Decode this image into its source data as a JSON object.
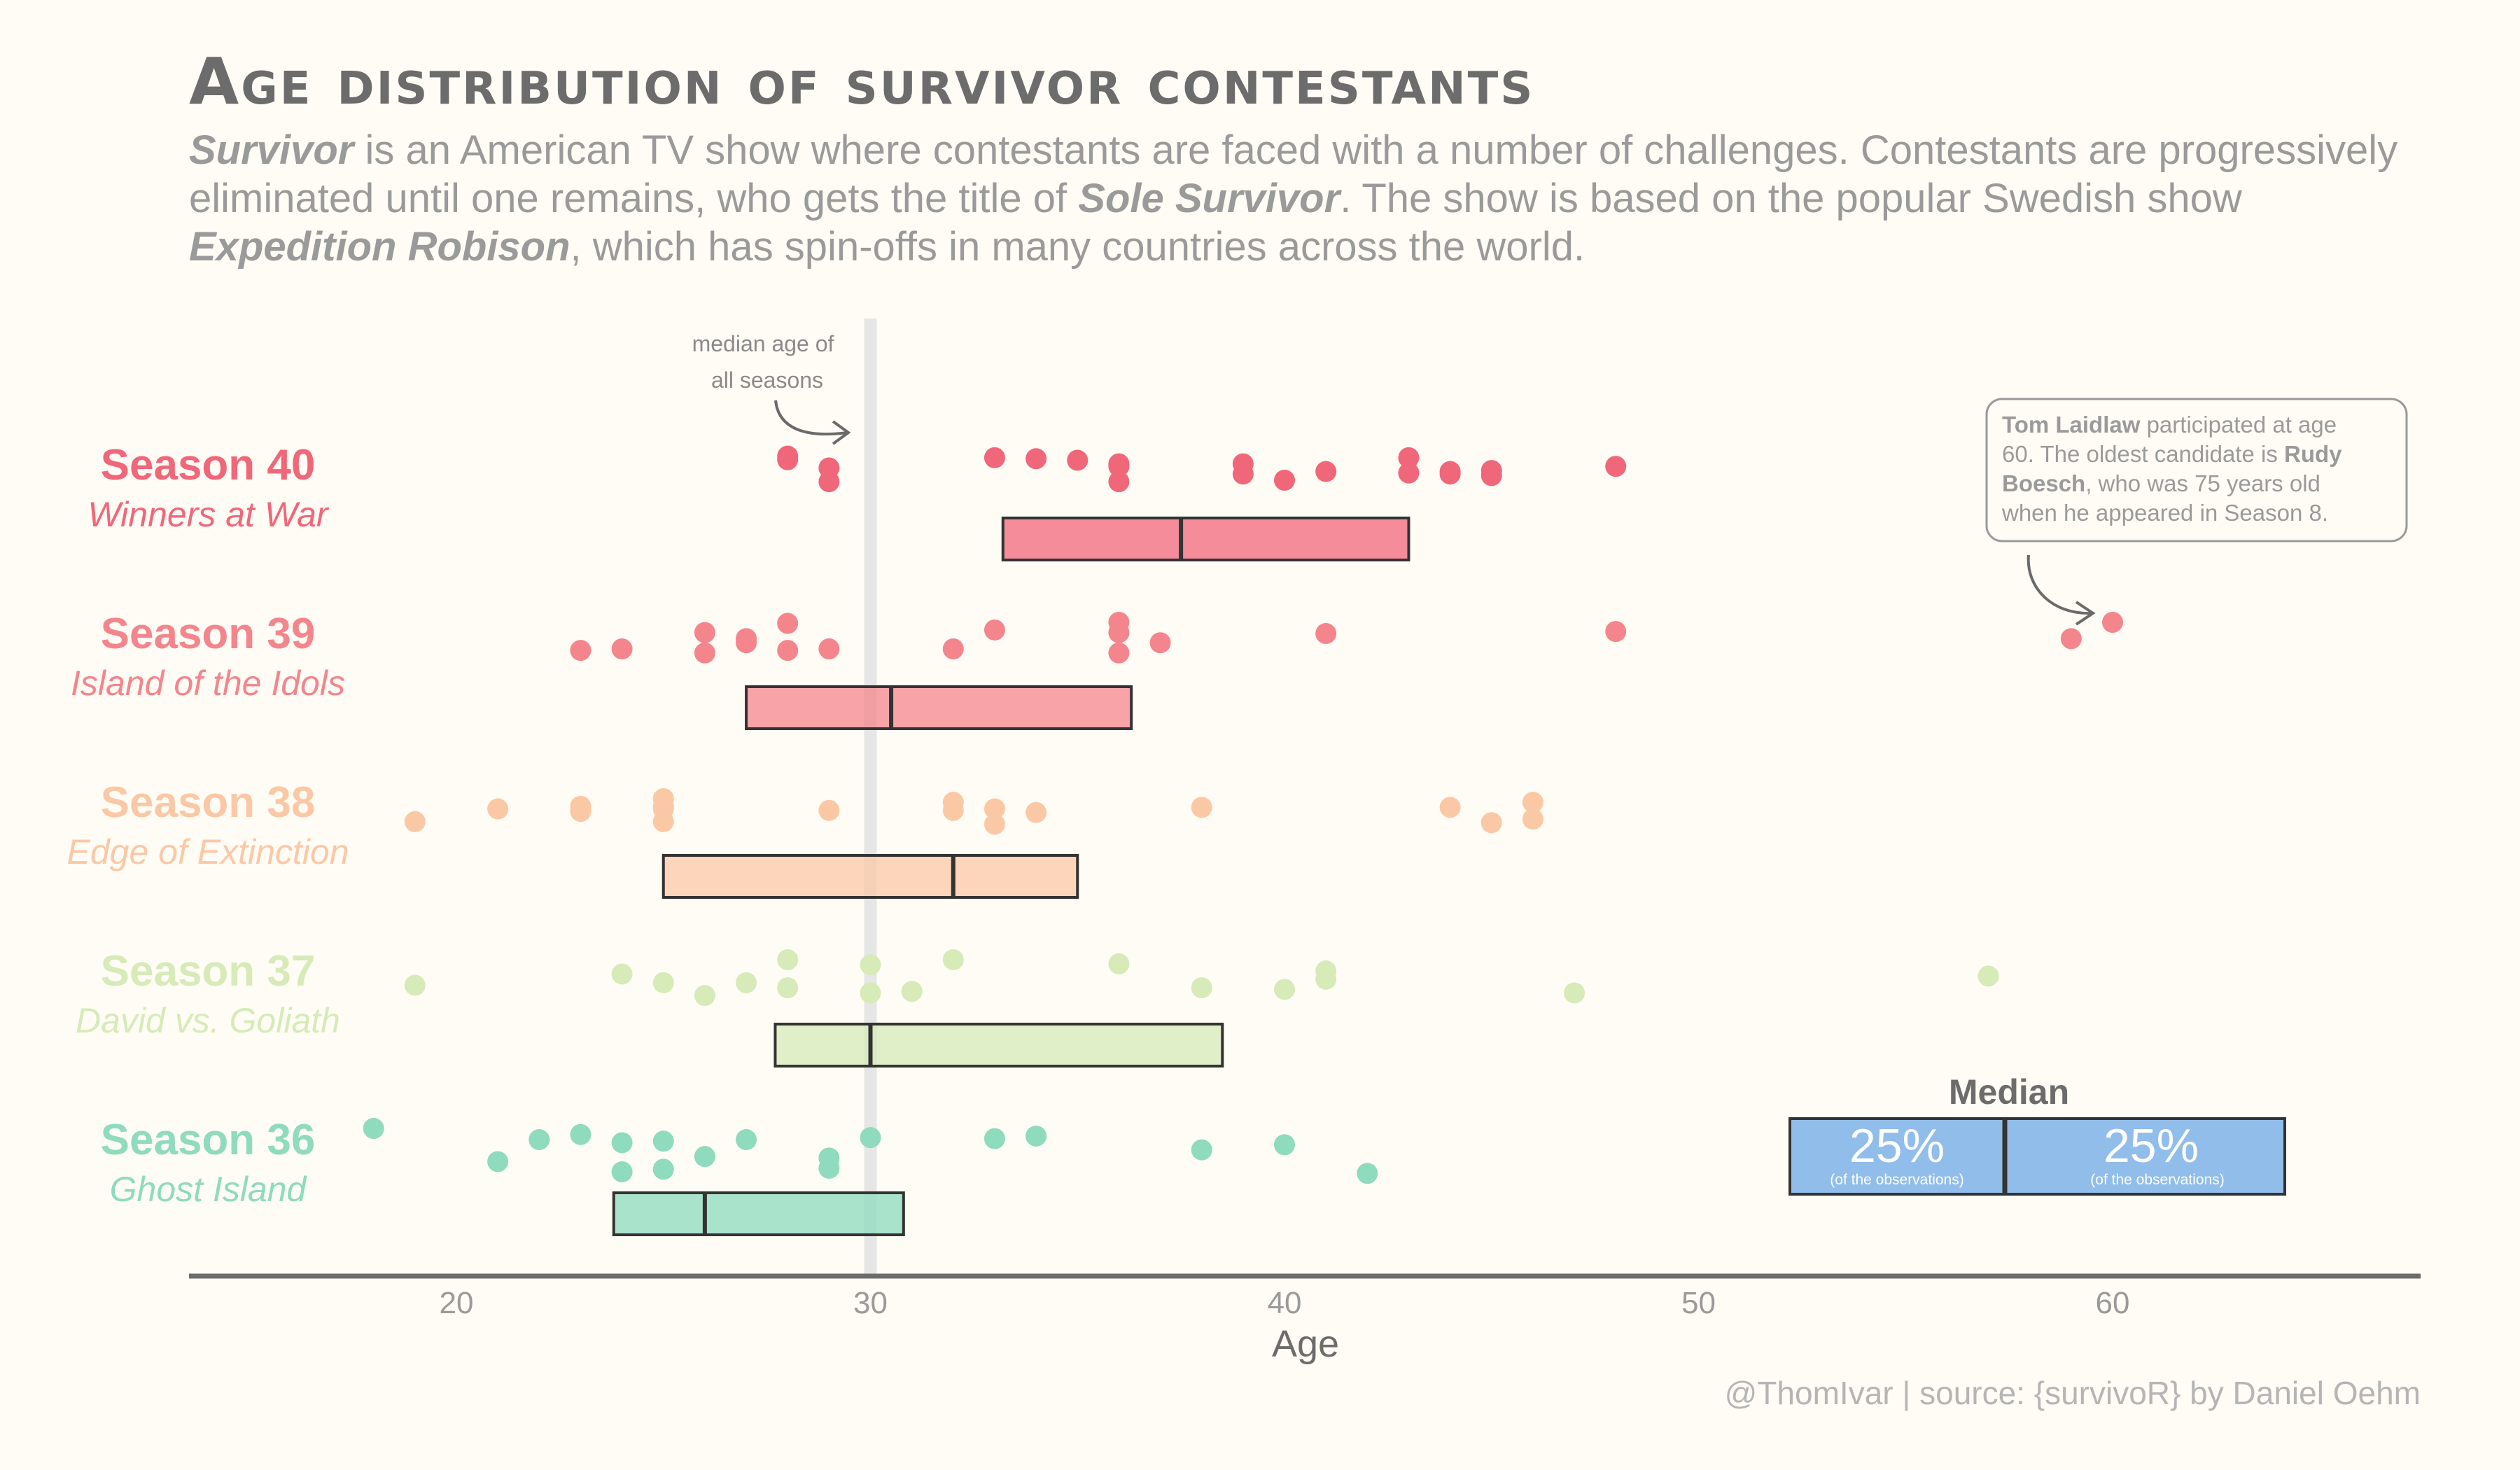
{
  "title": "Age distribution of survivor contestants",
  "subtitle": {
    "line1": [
      {
        "text": "Survivor",
        "style": "bi"
      },
      {
        "text": " is an American TV show where contestants are faced with a number of challenges. Contestants are progressively",
        "style": "n"
      }
    ],
    "line2": [
      {
        "text": "eliminated until one remains, who gets the title of ",
        "style": "n"
      },
      {
        "text": "Sole Survivor",
        "style": "bi"
      },
      {
        "text": ". The show is based on the popular Swedish show",
        "style": "n"
      }
    ],
    "line3": [
      {
        "text": "Expedition Robison",
        "style": "bi"
      },
      {
        "text": ", which has spin-offs in many countries across the world.",
        "style": "n"
      }
    ]
  },
  "median_annotation": {
    "line1": "median age of",
    "line2": "all seasons"
  },
  "callout": {
    "lines": [
      [
        {
          "text": "Tom Laidlaw",
          "style": "b"
        },
        {
          "text": " participated at age",
          "style": "n"
        }
      ],
      [
        {
          "text": "60. The oldest candidate is ",
          "style": "n"
        },
        {
          "text": "Rudy",
          "style": "b"
        }
      ],
      [
        {
          "text": "Boesch",
          "style": "b"
        },
        {
          "text": ", who was 75 years old",
          "style": "n"
        }
      ],
      [
        {
          "text": "when he appeared in Season 8.",
          "style": "n"
        }
      ]
    ]
  },
  "legend": {
    "title": "Median",
    "left_pct": "25%",
    "right_pct": "25%",
    "left_sub": "(of the observations)",
    "right_sub": "(of the observations)",
    "color": "#91bdea"
  },
  "caption": "@ThomIvar | source: {survivoR} by Daniel Oehm",
  "chart_data": {
    "type": "scatter",
    "xlabel": "Age",
    "xlim": [
      13.5,
      67.5
    ],
    "xticks": [
      20,
      30,
      40,
      50,
      60
    ],
    "overall_median": 30,
    "series": [
      {
        "season": "Season 40",
        "subtitle": "Winners at War",
        "color": "#f0677a",
        "box": {
          "q1": 33.2,
          "median": 37.5,
          "q3": 43
        },
        "points": [
          [
            28,
            0.05
          ],
          [
            28,
            0.12
          ],
          [
            29,
            0.28
          ],
          [
            29,
            0.55
          ],
          [
            33,
            0.08
          ],
          [
            34,
            0.1
          ],
          [
            35,
            0.13
          ],
          [
            36,
            0.2
          ],
          [
            36,
            0.55
          ],
          [
            36,
            0.25
          ],
          [
            39,
            0.2
          ],
          [
            39,
            0.4
          ],
          [
            40,
            0.52
          ],
          [
            41,
            0.35
          ],
          [
            43,
            0.08
          ],
          [
            43,
            0.38
          ],
          [
            44,
            0.35
          ],
          [
            44,
            0.4
          ],
          [
            45,
            0.33
          ],
          [
            45,
            0.43
          ],
          [
            48,
            0.25
          ]
        ]
      },
      {
        "season": "Season 39",
        "subtitle": "Island of the Idols",
        "color": "#f4858c",
        "box": {
          "q1": 27,
          "median": 30.5,
          "q3": 36.3
        },
        "points": [
          [
            23,
            0.55
          ],
          [
            24,
            0.52
          ],
          [
            26,
            0.2
          ],
          [
            26,
            0.6
          ],
          [
            27,
            0.32
          ],
          [
            27,
            0.4
          ],
          [
            28,
            0.02
          ],
          [
            28,
            0.55
          ],
          [
            29,
            0.52
          ],
          [
            32,
            0.52
          ],
          [
            33,
            0.15
          ],
          [
            36,
            0.0
          ],
          [
            36,
            0.2
          ],
          [
            36,
            0.6
          ],
          [
            37,
            0.4
          ],
          [
            41,
            0.22
          ],
          [
            48,
            0.18
          ],
          [
            59,
            0.32
          ],
          [
            60,
            0.0
          ]
        ]
      },
      {
        "season": "Season 38",
        "subtitle": "Edge of Extinction",
        "color": "#fbc8a6",
        "box": {
          "q1": 25,
          "median": 32,
          "q3": 35
        },
        "points": [
          [
            19,
            0.6
          ],
          [
            21,
            0.35
          ],
          [
            23,
            0.3
          ],
          [
            23,
            0.4
          ],
          [
            25,
            0.15
          ],
          [
            25,
            0.3
          ],
          [
            25,
            0.35
          ],
          [
            25,
            0.6
          ],
          [
            29,
            0.38
          ],
          [
            32,
            0.22
          ],
          [
            32,
            0.38
          ],
          [
            33,
            0.35
          ],
          [
            33,
            0.65
          ],
          [
            34,
            0.42
          ],
          [
            38,
            0.32
          ],
          [
            44,
            0.32
          ],
          [
            45,
            0.62
          ],
          [
            46,
            0.22
          ],
          [
            46,
            0.55
          ]
        ]
      },
      {
        "season": "Season 37",
        "subtitle": "David vs. Goliath",
        "color": "#d6ebb8",
        "box": {
          "q1": 27.7,
          "median": 30,
          "q3": 38.5
        },
        "points": [
          [
            19,
            0.5
          ],
          [
            24,
            0.28
          ],
          [
            25,
            0.45
          ],
          [
            26,
            0.7
          ],
          [
            27,
            0.45
          ],
          [
            28,
            0.0
          ],
          [
            28,
            0.55
          ],
          [
            30,
            0.1
          ],
          [
            30,
            0.65
          ],
          [
            31,
            0.62
          ],
          [
            32,
            0.0
          ],
          [
            36,
            0.08
          ],
          [
            38,
            0.55
          ],
          [
            40,
            0.58
          ],
          [
            41,
            0.22
          ],
          [
            41,
            0.38
          ],
          [
            47,
            0.65
          ],
          [
            57,
            0.32
          ]
        ]
      },
      {
        "season": "Season 36",
        "subtitle": "Ghost Island",
        "color": "#8edbbd",
        "box": {
          "q1": 23.8,
          "median": 26,
          "q3": 30.8
        },
        "points": [
          [
            18,
            0.0
          ],
          [
            21,
            0.65
          ],
          [
            22,
            0.22
          ],
          [
            23,
            0.12
          ],
          [
            24,
            0.28
          ],
          [
            24,
            0.85
          ],
          [
            25,
            0.25
          ],
          [
            25,
            0.8
          ],
          [
            26,
            0.55
          ],
          [
            27,
            0.22
          ],
          [
            29,
            0.58
          ],
          [
            29,
            0.78
          ],
          [
            30,
            0.18
          ],
          [
            33,
            0.2
          ],
          [
            34,
            0.15
          ],
          [
            38,
            0.42
          ],
          [
            40,
            0.32
          ],
          [
            42,
            0.88
          ]
        ]
      }
    ]
  }
}
